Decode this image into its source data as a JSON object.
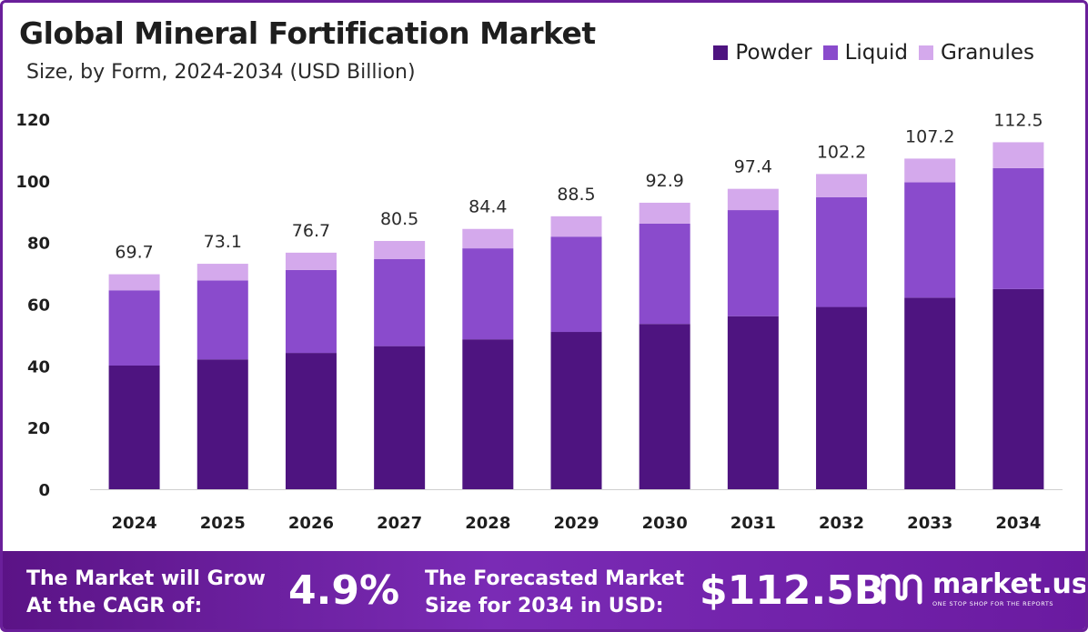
{
  "chart_data": {
    "type": "bar",
    "stacked": true,
    "title": "Global Mineral Fortification Market",
    "subtitle": "Size, by Form, 2024-2034 (USD Billion)",
    "categories": [
      "2024",
      "2025",
      "2026",
      "2027",
      "2028",
      "2029",
      "2030",
      "2031",
      "2032",
      "2033",
      "2034"
    ],
    "series": [
      {
        "name": "Powder",
        "color": "#4e1480",
        "values": [
          40.1,
          42.1,
          44.2,
          46.4,
          48.6,
          51.0,
          53.6,
          56.1,
          59.1,
          62.1,
          64.9
        ]
      },
      {
        "name": "Liquid",
        "color": "#8a4bcc",
        "values": [
          24.4,
          25.6,
          26.9,
          28.2,
          29.5,
          30.9,
          32.5,
          34.4,
          35.6,
          37.4,
          39.2
        ]
      },
      {
        "name": "Granules",
        "color": "#d4a9ec",
        "values": [
          5.2,
          5.4,
          5.6,
          5.9,
          6.3,
          6.6,
          6.8,
          6.9,
          7.5,
          7.7,
          8.4
        ]
      }
    ],
    "totals": [
      "69.7",
      "73.1",
      "76.7",
      "80.5",
      "84.4",
      "88.5",
      "92.9",
      "97.4",
      "102.2",
      "107.2",
      "112.5"
    ],
    "yticks": [
      "0",
      "20",
      "40",
      "60",
      "80",
      "100",
      "120"
    ],
    "ylim": [
      0,
      120
    ],
    "grid": false,
    "legend_position": "top-right"
  },
  "footer": {
    "cagr_line1": "The Market will Grow",
    "cagr_line2": "At the CAGR of:",
    "cagr_value": "4.9%",
    "forecast_line1": "The Forecasted Market",
    "forecast_line2": "Size for 2034 in USD:",
    "forecast_value": "$112.5B",
    "brand_name": "market.us",
    "brand_tagline": "ONE STOP SHOP FOR THE REPORTS"
  }
}
